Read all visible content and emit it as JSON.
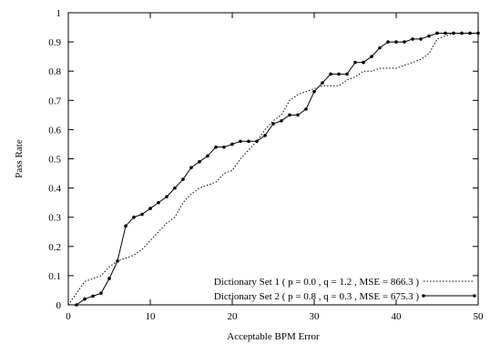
{
  "chart_data": {
    "type": "line",
    "title": "",
    "xlabel": "Acceptable BPM Error",
    "ylabel": "Pass Rate",
    "xlim": [
      0,
      50
    ],
    "ylim": [
      0,
      1
    ],
    "x_ticks": [
      0,
      10,
      20,
      30,
      40,
      50
    ],
    "y_ticks": [
      0,
      0.1,
      0.2,
      0.3,
      0.4,
      0.5,
      0.6,
      0.7,
      0.8,
      0.9,
      1
    ],
    "x_tick_labels": [
      "0",
      "10",
      "20",
      "30",
      "40",
      "50"
    ],
    "y_tick_labels": [
      "0",
      "0.1",
      "0.2",
      "0.3",
      "0.4",
      "0.5",
      "0.6",
      "0.7",
      "0.8",
      "0.9",
      "1"
    ],
    "grid": false,
    "legend_position": "bottom-right",
    "series": [
      {
        "name": "Dictionary Set 1 ( p = 0.0 , q = 1.2 , MSE = 866.3 )",
        "style": "dotted",
        "markers": false,
        "color": "#000000",
        "x": [
          0,
          1,
          2,
          3,
          4,
          5,
          6,
          7,
          8,
          9,
          10,
          11,
          12,
          13,
          14,
          15,
          16,
          17,
          18,
          19,
          20,
          21,
          22,
          23,
          24,
          25,
          26,
          27,
          28,
          29,
          30,
          31,
          32,
          33,
          34,
          35,
          36,
          37,
          38,
          39,
          40,
          41,
          42,
          43,
          44,
          45,
          46,
          47,
          48,
          49,
          50
        ],
        "y": [
          0,
          0.04,
          0.08,
          0.09,
          0.1,
          0.13,
          0.15,
          0.16,
          0.17,
          0.19,
          0.22,
          0.25,
          0.28,
          0.3,
          0.35,
          0.38,
          0.4,
          0.41,
          0.42,
          0.45,
          0.46,
          0.5,
          0.53,
          0.56,
          0.6,
          0.63,
          0.65,
          0.7,
          0.72,
          0.73,
          0.74,
          0.75,
          0.75,
          0.75,
          0.77,
          0.78,
          0.8,
          0.8,
          0.81,
          0.81,
          0.81,
          0.82,
          0.83,
          0.84,
          0.86,
          0.91,
          0.92,
          0.93,
          0.93,
          0.93,
          0.93
        ]
      },
      {
        "name": "Dictionary Set 2 ( p = 0.8 , q = 0.3 , MSE = 675.3 )",
        "style": "solid",
        "markers": true,
        "color": "#000000",
        "x": [
          1,
          2,
          3,
          4,
          5,
          6,
          7,
          8,
          9,
          10,
          11,
          12,
          13,
          14,
          15,
          16,
          17,
          18,
          19,
          20,
          21,
          22,
          23,
          24,
          25,
          26,
          27,
          28,
          29,
          30,
          31,
          32,
          33,
          34,
          35,
          36,
          37,
          38,
          39,
          40,
          41,
          42,
          43,
          44,
          45,
          46,
          47,
          48,
          49,
          50
        ],
        "y": [
          0,
          0.02,
          0.03,
          0.04,
          0.09,
          0.15,
          0.27,
          0.3,
          0.31,
          0.33,
          0.35,
          0.37,
          0.4,
          0.43,
          0.47,
          0.49,
          0.51,
          0.54,
          0.54,
          0.55,
          0.56,
          0.56,
          0.56,
          0.58,
          0.62,
          0.63,
          0.65,
          0.65,
          0.67,
          0.73,
          0.76,
          0.79,
          0.79,
          0.79,
          0.83,
          0.83,
          0.85,
          0.88,
          0.9,
          0.9,
          0.9,
          0.91,
          0.91,
          0.92,
          0.93,
          0.93,
          0.93,
          0.93,
          0.93,
          0.93
        ]
      }
    ]
  }
}
